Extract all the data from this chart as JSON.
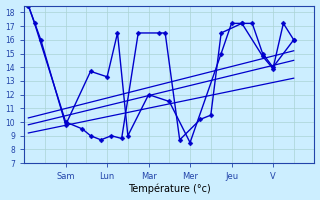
{
  "background_color": "#cceeff",
  "line_color": "#0000cc",
  "xlabel": "Température (°c)",
  "ylim": [
    7,
    18.5
  ],
  "ytick_min": 7,
  "ytick_max": 18,
  "xlim_min": 0,
  "xlim_max": 14,
  "day_ticks": [
    2,
    4,
    6,
    8,
    10,
    12
  ],
  "day_labels": [
    "Sam",
    "Lun",
    "Mar",
    "Mer",
    "Jeu",
    "V"
  ],
  "sA_x": [
    0.2,
    0.5,
    2.0,
    2.8,
    3.2,
    3.7,
    4.2,
    4.7,
    5.5,
    6.5,
    6.8,
    7.5,
    8.5,
    9.0,
    9.5,
    10.5,
    11.0,
    11.5,
    12.0,
    13.0
  ],
  "sA_y": [
    18.5,
    17.2,
    10.0,
    9.5,
    9.0,
    8.7,
    9.0,
    8.8,
    16.5,
    16.5,
    16.5,
    8.7,
    10.2,
    10.5,
    16.5,
    17.2,
    17.2,
    15.0,
    14.0,
    16.0
  ],
  "sB_x": [
    0.2,
    0.8,
    2.0,
    3.2,
    4.0,
    4.5,
    5.0,
    6.0,
    7.0,
    8.0,
    9.5,
    10.0,
    10.5,
    11.5,
    12.0,
    12.5,
    13.0
  ],
  "sB_y": [
    18.5,
    16.0,
    9.8,
    13.7,
    13.3,
    16.5,
    9.0,
    12.0,
    11.5,
    8.5,
    15.0,
    17.2,
    17.2,
    14.8,
    13.9,
    17.2,
    16.0
  ],
  "trend1_x": [
    0.2,
    13.0
  ],
  "trend1_y": [
    9.2,
    13.2
  ],
  "trend2_x": [
    0.2,
    13.0
  ],
  "trend2_y": [
    9.8,
    14.5
  ],
  "trend3_x": [
    0.2,
    13.0
  ],
  "trend3_y": [
    10.3,
    15.2
  ],
  "grid_color": "#aad4d4",
  "spine_color": "#2244aa",
  "lw": 1.0,
  "marker_size": 2.5
}
